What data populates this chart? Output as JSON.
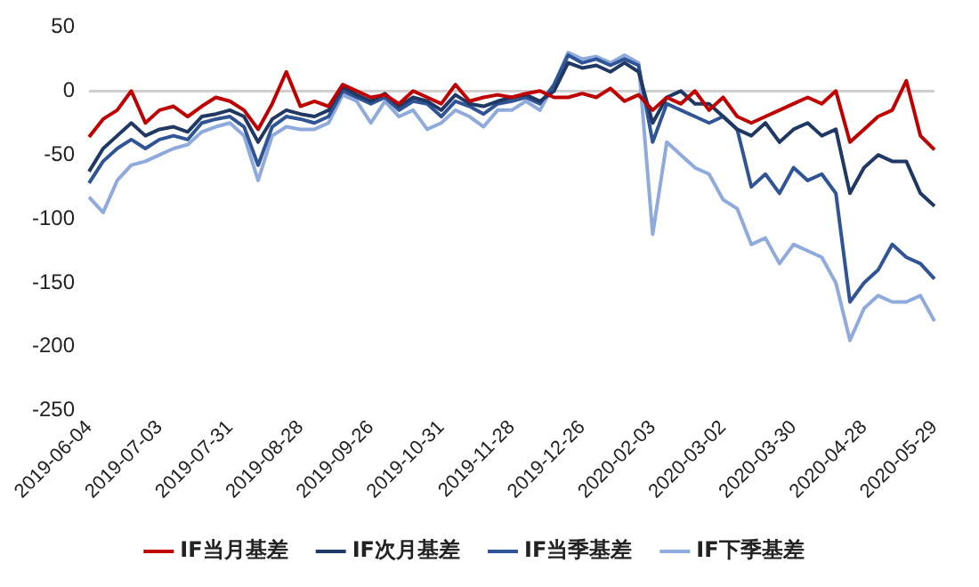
{
  "chart_data": {
    "type": "line",
    "categories": [
      "2019-06-04",
      null,
      null,
      null,
      null,
      "2019-07-03",
      null,
      null,
      null,
      null,
      "2019-07-31",
      null,
      null,
      null,
      null,
      "2019-08-28",
      null,
      null,
      null,
      null,
      "2019-09-26",
      null,
      null,
      null,
      null,
      "2019-10-31",
      null,
      null,
      null,
      null,
      "2019-11-28",
      null,
      null,
      null,
      null,
      "2019-12-26",
      null,
      null,
      null,
      null,
      "2020-02-03",
      null,
      null,
      null,
      null,
      "2020-03-02",
      null,
      null,
      null,
      null,
      "2020-03-30",
      null,
      null,
      null,
      null,
      "2020-04-28",
      null,
      null,
      null,
      null,
      "2020-05-29"
    ],
    "series": [
      {
        "name": "IF当月基差",
        "color": "#c00000",
        "values": [
          -36,
          -22,
          -15,
          0,
          -25,
          -15,
          -12,
          -20,
          -12,
          -5,
          -8,
          -15,
          -30,
          -10,
          15,
          -12,
          -8,
          -12,
          5,
          0,
          -5,
          -3,
          -10,
          0,
          -5,
          -10,
          5,
          -8,
          -5,
          -3,
          -5,
          -2,
          0,
          -5,
          -5,
          -2,
          -5,
          2,
          -8,
          -3,
          -15,
          -5,
          -10,
          0,
          -15,
          -5,
          -20,
          -25,
          -20,
          -15,
          -10,
          -5,
          -10,
          0,
          -40,
          -30,
          -20,
          -15,
          8,
          -35,
          -46
        ]
      },
      {
        "name": "IF次月基差",
        "color": "#1f3864",
        "values": [
          -63,
          -45,
          -35,
          -25,
          -35,
          -30,
          -28,
          -32,
          -20,
          -18,
          -15,
          -20,
          -40,
          -22,
          -15,
          -18,
          -20,
          -15,
          3,
          -3,
          -8,
          -2,
          -12,
          -5,
          -8,
          -15,
          -3,
          -10,
          -12,
          -8,
          -5,
          -3,
          -8,
          0,
          22,
          18,
          20,
          15,
          22,
          15,
          -25,
          -5,
          0,
          -10,
          -10,
          -20,
          -30,
          -35,
          -25,
          -40,
          -30,
          -25,
          -35,
          -30,
          -80,
          -60,
          -50,
          -55,
          -55,
          -80,
          -90
        ]
      },
      {
        "name": "IF当季基差",
        "color": "#2f5597",
        "values": [
          -72,
          -55,
          -45,
          -38,
          -45,
          -38,
          -35,
          -38,
          -25,
          -22,
          -20,
          -28,
          -58,
          -28,
          -20,
          -22,
          -25,
          -20,
          0,
          -5,
          -10,
          -5,
          -15,
          -8,
          -10,
          -20,
          -8,
          -12,
          -18,
          -10,
          -8,
          -5,
          -10,
          5,
          28,
          22,
          25,
          20,
          25,
          20,
          -40,
          -10,
          -15,
          -20,
          -25,
          -20,
          -30,
          -75,
          -65,
          -80,
          -60,
          -70,
          -65,
          -80,
          -165,
          -150,
          -140,
          -120,
          -130,
          -135,
          -147
        ]
      },
      {
        "name": "IF下季基差",
        "color": "#8faadc",
        "values": [
          -83,
          -95,
          -70,
          -58,
          -55,
          -50,
          -45,
          -42,
          -32,
          -28,
          -25,
          -35,
          -70,
          -35,
          -28,
          -30,
          -30,
          -25,
          -3,
          -8,
          -25,
          -8,
          -20,
          -15,
          -30,
          -25,
          -15,
          -20,
          -28,
          -15,
          -15,
          -8,
          -15,
          5,
          30,
          25,
          27,
          22,
          28,
          22,
          -112,
          -40,
          -50,
          -60,
          -65,
          -85,
          -92,
          -120,
          -115,
          -135,
          -120,
          -125,
          -130,
          -150,
          -195,
          -170,
          -160,
          -165,
          -165,
          -160,
          -180
        ]
      }
    ],
    "ylim": [
      -250,
      50
    ],
    "yticks": [
      -250,
      -200,
      -150,
      -100,
      -50,
      0,
      50
    ],
    "grid": "y",
    "legend": "bottom",
    "marker": "none",
    "line_style": "solid"
  }
}
